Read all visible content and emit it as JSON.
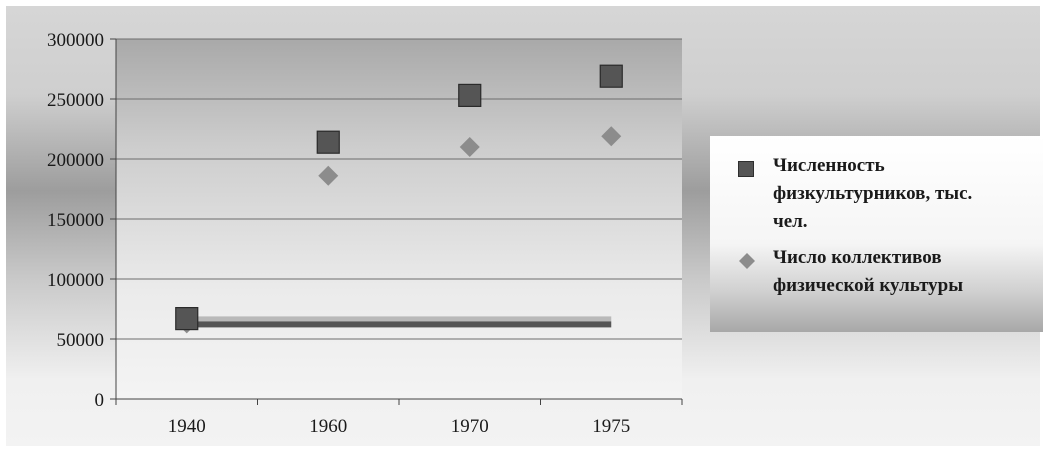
{
  "chart_data": {
    "type": "scatter",
    "categories": [
      "1940",
      "1960",
      "1970",
      "1975"
    ],
    "y_ticks": [
      "0",
      "50000",
      "100000",
      "150000",
      "200000",
      "250000",
      "300000"
    ],
    "ylim": [
      0,
      300000
    ],
    "grid": true,
    "legend_position": "right",
    "series": [
      {
        "name": "Численность физкультурников, тыс. чел.",
        "marker": "square",
        "color": "#555555",
        "values": [
          67000,
          214000,
          253000,
          269000
        ]
      },
      {
        "name": "Число коллективов физической культуры",
        "marker": "diamond",
        "color": "#8c8c8c",
        "values": [
          63000,
          186000,
          210000,
          219000
        ]
      }
    ],
    "annotations": [
      {
        "type": "horizontal-band",
        "x_from": "1940",
        "x_to": "1975",
        "value": 63000,
        "color": "#555555"
      }
    ]
  },
  "legend": {
    "entries": [
      {
        "label_lines": [
          "Численность",
          "физкультурников, тыс.",
          "чел."
        ]
      },
      {
        "label_lines": [
          "Число коллективов",
          "физической культуры"
        ]
      }
    ]
  }
}
